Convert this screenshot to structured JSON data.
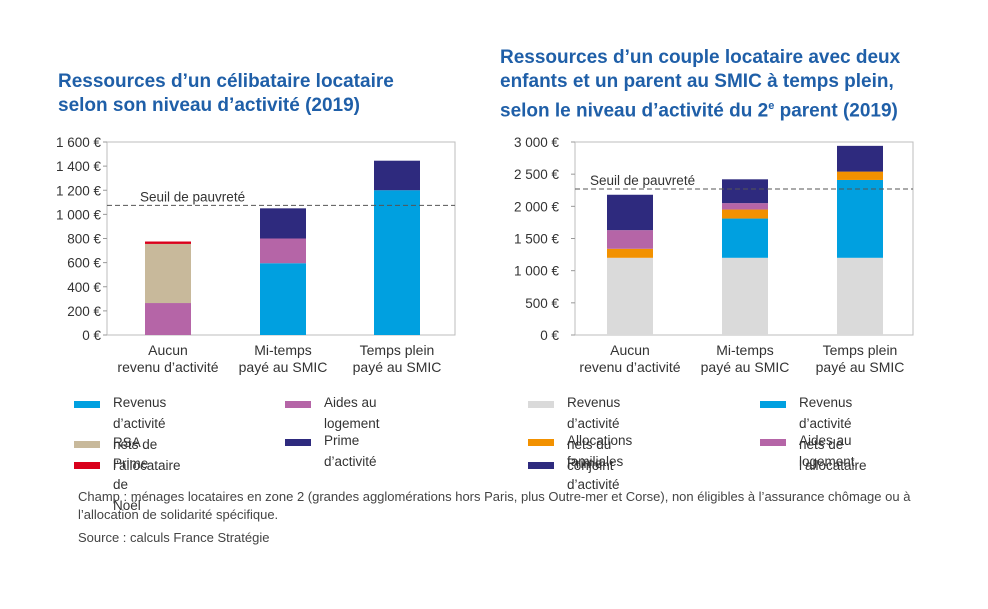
{
  "chart_data": [
    {
      "type": "bar",
      "stacked": true,
      "title_lines": [
        "Ressources d’un célibataire locataire",
        "selon son niveau d’activité (2019)"
      ],
      "categories": [
        [
          "Aucun",
          "revenu d’activité"
        ],
        [
          "Mi-temps",
          "payé au SMIC"
        ],
        [
          "Temps plein",
          "payé au SMIC"
        ]
      ],
      "ylim": [
        0,
        1600
      ],
      "yticks": [
        0,
        200,
        400,
        600,
        800,
        1000,
        1200,
        1400,
        1600
      ],
      "ytick_labels": [
        "0 €",
        "200 €",
        "400 €",
        "600 €",
        "800 €",
        "1 000 €",
        "1 200 €",
        "1 400 €",
        "1 600 €"
      ],
      "threshold": {
        "value": 1075,
        "label": "Seuil de pauvreté"
      },
      "series": [
        {
          "name": "Revenus d’activité nets de l’allocataire",
          "color": "#00a0e0",
          "values": [
            0,
            595,
            1200
          ]
        },
        {
          "name": "Aides au logement",
          "color": "#b565a7",
          "values": [
            265,
            205,
            0
          ]
        },
        {
          "name": "RSA",
          "color": "#c8b99b",
          "values": [
            490,
            0,
            0
          ]
        },
        {
          "name": "Prime de Noël",
          "color": "#d9001b",
          "values": [
            20,
            0,
            0
          ]
        },
        {
          "name": "Prime d’activité",
          "color": "#2e2a7e",
          "values": [
            0,
            250,
            245
          ]
        }
      ]
    },
    {
      "type": "bar",
      "stacked": true,
      "title_lines": [
        "Ressources d’un couple locataire avec deux",
        "enfants et un parent au SMIC à temps plein,",
        "selon le niveau d’activité du 2",
        "e",
        " parent (2019)"
      ],
      "categories": [
        [
          "Aucun",
          "revenu d’activité"
        ],
        [
          "Mi-temps",
          "payé au SMIC"
        ],
        [
          "Temps plein",
          "payé au SMIC"
        ]
      ],
      "ylim": [
        0,
        3000
      ],
      "yticks": [
        0,
        500,
        1000,
        1500,
        2000,
        2500,
        3000
      ],
      "ytick_labels": [
        "0 €",
        "500 €",
        "1 000 €",
        "1 500 €",
        "2 000 €",
        "2 500 €",
        "3 000 €"
      ],
      "threshold": {
        "value": 2270,
        "label": "Seuil de pauvreté"
      },
      "series": [
        {
          "name": "Revenus d’activité nets du conjoint",
          "color": "#dadada",
          "values": [
            1200,
            1200,
            1200
          ]
        },
        {
          "name": "Revenus d’activité nets de l’allocataire",
          "color": "#00a0e0",
          "values": [
            0,
            610,
            1210
          ]
        },
        {
          "name": "Allocations familiales",
          "color": "#f29100",
          "values": [
            140,
            140,
            130
          ]
        },
        {
          "name": "Aides au logement",
          "color": "#b565a7",
          "values": [
            290,
            100,
            0
          ]
        },
        {
          "name": "Prime d’activité",
          "color": "#2e2a7e",
          "values": [
            550,
            370,
            400
          ]
        }
      ]
    }
  ],
  "legend_left": [
    {
      "lines": [
        "Revenus d’activité",
        "nets de l’allocataire"
      ],
      "color": "#00a0e0"
    },
    {
      "lines": [
        "Aides au logement"
      ],
      "color": "#b565a7"
    },
    {
      "lines": [
        "RSA"
      ],
      "color": "#c8b99b"
    },
    {
      "lines": [
        "Prime d’activité"
      ],
      "color": "#2e2a7e"
    },
    {
      "lines": [
        "Prime de Noël"
      ],
      "color": "#d9001b"
    }
  ],
  "legend_right": [
    {
      "lines": [
        "Revenus d’activité",
        "nets du conjoint"
      ],
      "color": "#dadada"
    },
    {
      "lines": [
        "Revenus d’activité",
        "nets de l’allocataire"
      ],
      "color": "#00a0e0"
    },
    {
      "lines": [
        "Allocations familiales"
      ],
      "color": "#f29100"
    },
    {
      "lines": [
        "Aides au logement"
      ],
      "color": "#b565a7"
    },
    {
      "lines": [
        "Prime d’activité"
      ],
      "color": "#2e2a7e"
    }
  ],
  "notes": {
    "champ": "Champ : ménages locataires en zone 2 (grandes agglomérations hors Paris, plus Outre-mer et Corse), non éligibles à l’assurance chômage ou à l’allocation de solidarité spécifique.",
    "source": "Source : calculs France Stratégie"
  }
}
